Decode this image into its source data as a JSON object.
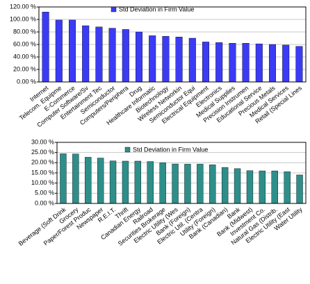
{
  "chart_data": [
    {
      "type": "bar",
      "categories": [
        "Internet",
        "Telecom. Equipme",
        "E-Commerce",
        "Computer Software/Sv",
        "Entertainment Tec",
        "Semiconductor",
        "Computers/Periphera",
        "Drug",
        "Healthcare Informatic",
        "Biotechnology",
        "Wireless Networkin",
        "Semiconductor Equi",
        "Electrical Equipment",
        "Electronics",
        "Medical Supplies",
        "Precision Instrumen",
        "Educational Service",
        "Precious Metals",
        "Medical Services",
        "Retail (Special Lines"
      ],
      "series": [
        {
          "name": "Std Deviation in Firm Value",
          "color": "#3b3bf5",
          "values": [
            112,
            99,
            99,
            90,
            88,
            86,
            84,
            80,
            74,
            73,
            72,
            70,
            64,
            63,
            62,
            62,
            61,
            60,
            59,
            57
          ]
        }
      ],
      "ylim": [
        0,
        120
      ],
      "yticks": [
        {
          "value": 0,
          "label": "0.00 %"
        },
        {
          "value": 20,
          "label": "20.00 %"
        },
        {
          "value": 40,
          "label": "40.00 %"
        },
        {
          "value": 60,
          "label": "60.00 %"
        },
        {
          "value": 80,
          "label": "80.00 %"
        },
        {
          "value": 100,
          "label": "100.00 %"
        },
        {
          "value": 120,
          "label": "120.00 %"
        }
      ],
      "grid": true
    },
    {
      "type": "bar",
      "categories": [
        "Beverage (Soft Drink",
        "Grocery",
        "Paper/Forest Produc",
        "Newspaper",
        "R.E.I.T.",
        "Thrift",
        "Canadian Energy",
        "Railroad",
        "Securities Brokerage",
        "Electric Utility (Wes",
        "Bank (Foreign)",
        "Electric Util. (Centra",
        "Utility (Foreign)",
        "Bank (Canadian)",
        "Bank",
        "Bank (Midwest)",
        "Investment Co.",
        "Natural Gas (Distrib.",
        "Electric Utility (East",
        "Water Utility"
      ],
      "series": [
        {
          "name": "Std Deviation in Firm Value",
          "color": "#2e8f8a",
          "values": [
            24.4,
            24.3,
            22.7,
            22.3,
            20.9,
            20.8,
            20.8,
            20.6,
            20.0,
            19.4,
            19.3,
            19.3,
            19.0,
            17.7,
            17.1,
            16.1,
            16.0,
            16.0,
            15.6,
            14.0
          ]
        }
      ],
      "ylim": [
        0,
        30
      ],
      "yticks": [
        {
          "value": 0,
          "label": "0.00 %"
        },
        {
          "value": 5,
          "label": "5.00 %"
        },
        {
          "value": 10,
          "label": "10.00 %"
        },
        {
          "value": 15,
          "label": "15.00 %"
        },
        {
          "value": 20,
          "label": "20.00 %"
        },
        {
          "value": 25,
          "label": "25.00 %"
        },
        {
          "value": 30,
          "label": "30.00 %"
        }
      ],
      "grid": true
    }
  ]
}
